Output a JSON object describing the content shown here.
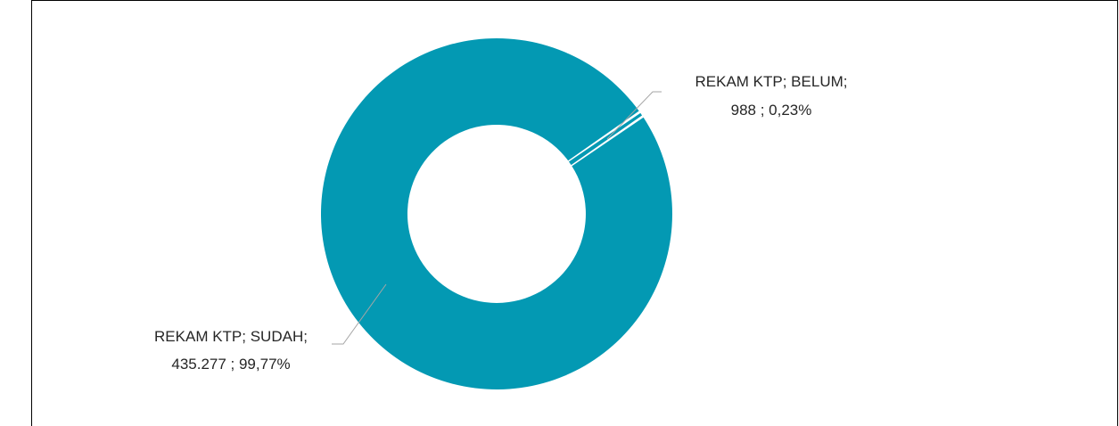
{
  "chart_data": {
    "type": "pie",
    "variant": "doughnut",
    "series": [
      {
        "values": [
          988,
          435277
        ],
        "categories": [
          "BELUM",
          "SUDAH"
        ],
        "percents": [
          "0,23%",
          "99,77%"
        ]
      }
    ],
    "slices": [
      {
        "category": "BELUM",
        "value": 988,
        "value_label": "988",
        "percent_label": "0,23%",
        "label_line1": "REKAM KTP; BELUM;",
        "label_line2": "988 ; 0,23%",
        "color": "#0399B3"
      },
      {
        "category": "SUDAH",
        "value": 435277,
        "value_label": "435.277",
        "percent_label": "99,77%",
        "label_line1": "REKAM KTP; SUDAH;",
        "label_line2": "435.277 ; 99,77%",
        "color": "#0399B3"
      }
    ],
    "title": "",
    "legend": "none",
    "colors": {
      "slice": "#0399B3",
      "leader_line": "#A6A6A6",
      "label_text": "#262626",
      "frame": "#000000",
      "background": "#FFFFFF"
    }
  }
}
